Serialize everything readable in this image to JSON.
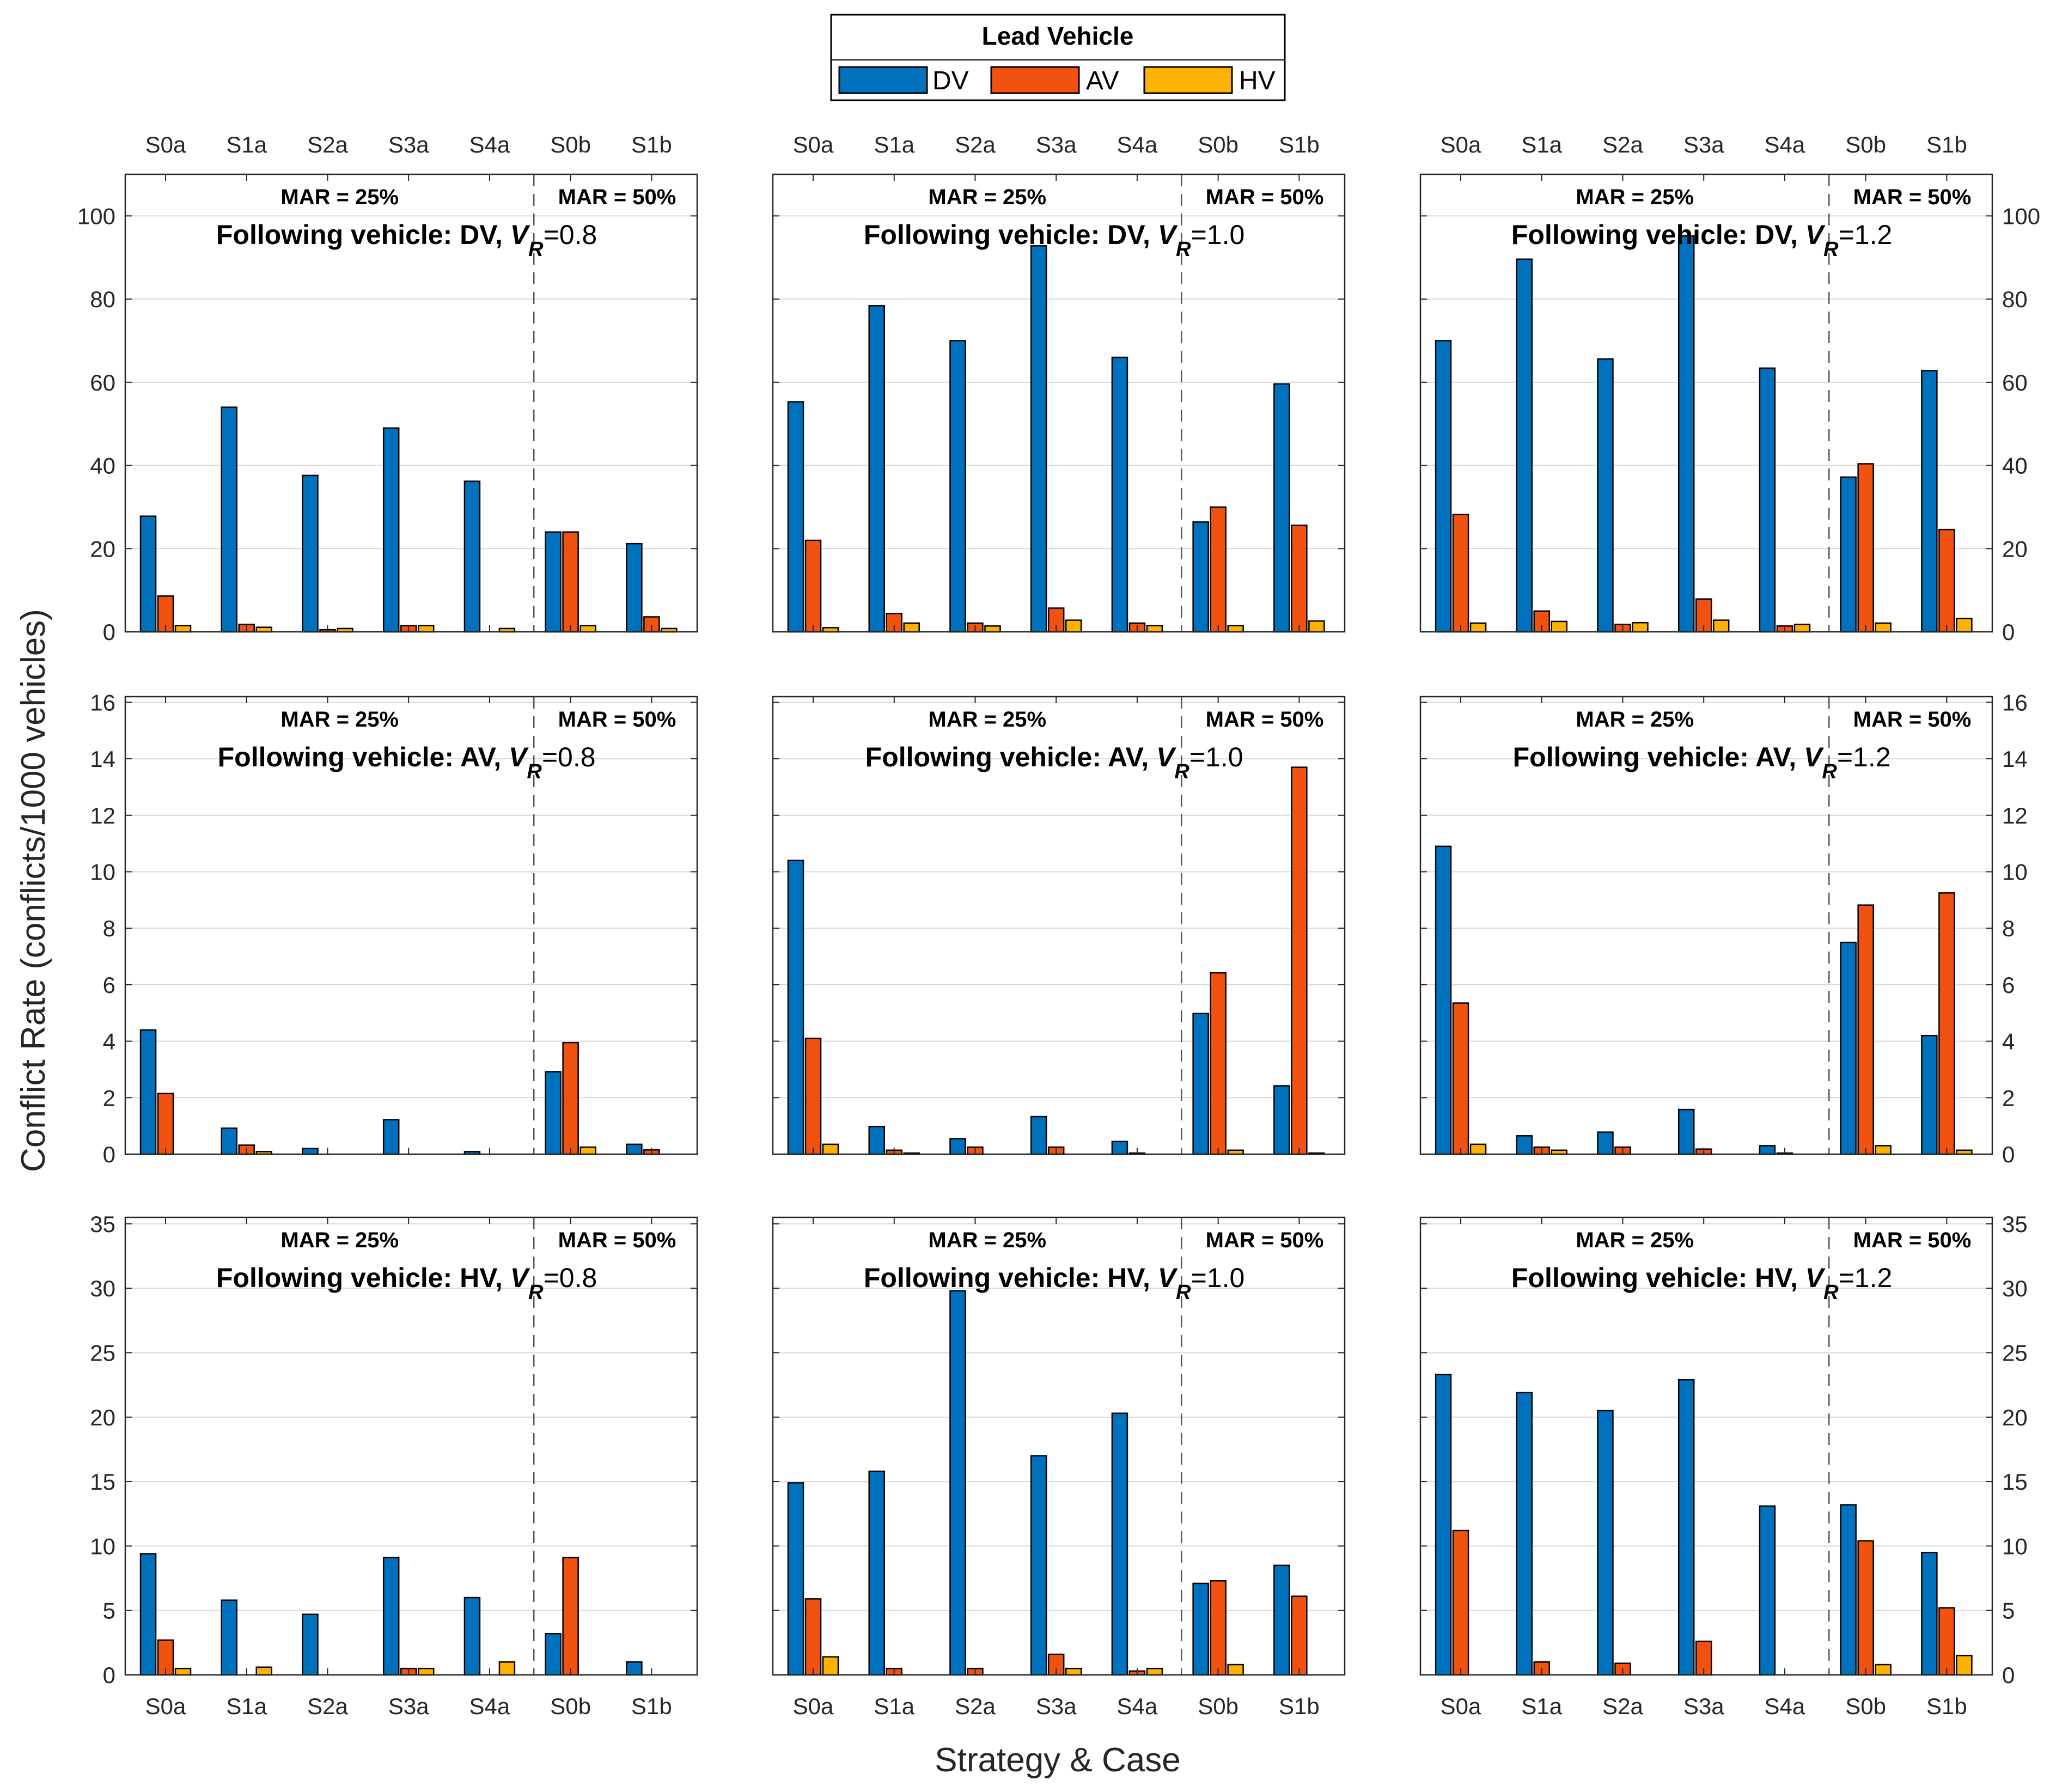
{
  "figure": {
    "legend_title": "Lead Vehicle",
    "legend": [
      {
        "name": "DV",
        "color": "#0072BD"
      },
      {
        "name": "AV",
        "color": "#F2520F"
      },
      {
        "name": "HV",
        "color": "#FFB100"
      }
    ],
    "ylabel": "Conflict Rate (conflicts/1000 vehicles)",
    "xlabel": "Strategy & Case",
    "categories": [
      "S0a",
      "S1a",
      "S2a",
      "S3a",
      "S4a",
      "S0b",
      "S1b"
    ],
    "region_labels": [
      "MAR = 25%",
      "MAR = 50%"
    ]
  },
  "chart_data": [
    {
      "type": "bar",
      "title": "Following vehicle: DV, V_R=0.8",
      "title_prefix": "Following vehicle: DV, ",
      "vr_symbol": "V",
      "vr_sub": "R",
      "vr_value": "=0.8",
      "ylim": [
        0,
        110
      ],
      "yticks": [
        0,
        20,
        40,
        60,
        80,
        100
      ],
      "series": [
        {
          "name": "DV",
          "values": [
            27.8,
            54,
            37.6,
            49,
            36.2,
            24,
            21.2
          ]
        },
        {
          "name": "AV",
          "values": [
            8.6,
            1.8,
            0.5,
            1.5,
            0,
            24,
            3.6
          ]
        },
        {
          "name": "HV",
          "values": [
            1.5,
            1.1,
            0.8,
            1.5,
            0.8,
            1.5,
            0.8
          ]
        }
      ]
    },
    {
      "type": "bar",
      "title": "Following vehicle: DV, V_R=1.0",
      "title_prefix": "Following vehicle: DV, ",
      "vr_symbol": "V",
      "vr_sub": "R",
      "vr_value": "=1.0",
      "ylim": [
        0,
        110
      ],
      "yticks": [
        0,
        20,
        40,
        60,
        80,
        100
      ],
      "series": [
        {
          "name": "DV",
          "values": [
            55.3,
            78.4,
            70,
            92.8,
            66,
            26.4,
            59.6
          ]
        },
        {
          "name": "AV",
          "values": [
            22,
            4.4,
            2.1,
            5.7,
            2.1,
            30,
            25.6
          ]
        },
        {
          "name": "HV",
          "values": [
            1,
            2.1,
            1.4,
            2.8,
            1.5,
            1.5,
            2.6
          ]
        }
      ]
    },
    {
      "type": "bar",
      "title": "Following vehicle: DV, V_R=1.2",
      "title_prefix": "Following vehicle: DV, ",
      "vr_symbol": "V",
      "vr_sub": "R",
      "vr_value": "=1.2",
      "ylim": [
        0,
        110
      ],
      "yticks": [
        0,
        20,
        40,
        60,
        80,
        100
      ],
      "series": [
        {
          "name": "DV",
          "values": [
            70,
            89.6,
            65.6,
            95.2,
            63.4,
            37.2,
            62.8
          ]
        },
        {
          "name": "AV",
          "values": [
            28.2,
            5,
            1.8,
            7.9,
            1.4,
            40.4,
            24.6
          ]
        },
        {
          "name": "HV",
          "values": [
            2.1,
            2.5,
            2.2,
            2.8,
            1.8,
            2.1,
            3.2
          ]
        }
      ]
    },
    {
      "type": "bar",
      "title": "Following vehicle: AV, V_R=0.8",
      "title_prefix": "Following vehicle: AV, ",
      "vr_symbol": "V",
      "vr_sub": "R",
      "vr_value": "=0.8",
      "ylim": [
        0,
        16.2
      ],
      "yticks": [
        0,
        2,
        4,
        6,
        8,
        10,
        12,
        14,
        16
      ],
      "series": [
        {
          "name": "DV",
          "values": [
            4.4,
            0.92,
            0.2,
            1.22,
            0.09,
            2.92,
            0.35
          ]
        },
        {
          "name": "AV",
          "values": [
            2.15,
            0.32,
            0,
            0,
            0,
            3.95,
            0.15
          ]
        },
        {
          "name": "HV",
          "values": [
            0,
            0.09,
            0,
            0,
            0,
            0.25,
            0
          ]
        }
      ]
    },
    {
      "type": "bar",
      "title": "Following vehicle: AV, V_R=1.0",
      "title_prefix": "Following vehicle: AV, ",
      "vr_symbol": "V",
      "vr_sub": "R",
      "vr_value": "=1.0",
      "ylim": [
        0,
        16.2
      ],
      "yticks": [
        0,
        2,
        4,
        6,
        8,
        10,
        12,
        14,
        16
      ],
      "series": [
        {
          "name": "DV",
          "values": [
            10.4,
            0.98,
            0.55,
            1.33,
            0.45,
            4.98,
            2.42
          ]
        },
        {
          "name": "AV",
          "values": [
            4.1,
            0.14,
            0.25,
            0.25,
            0.04,
            6.42,
            13.7
          ]
        },
        {
          "name": "HV",
          "values": [
            0.35,
            0.04,
            0,
            0,
            0,
            0.14,
            0.04
          ]
        }
      ]
    },
    {
      "type": "bar",
      "title": "Following vehicle: AV, V_R=1.2",
      "title_prefix": "Following vehicle: AV, ",
      "vr_symbol": "V",
      "vr_sub": "R",
      "vr_value": "=1.2",
      "ylim": [
        0,
        16.2
      ],
      "yticks": [
        0,
        2,
        4,
        6,
        8,
        10,
        12,
        14,
        16
      ],
      "series": [
        {
          "name": "DV",
          "values": [
            10.9,
            0.65,
            0.78,
            1.58,
            0.3,
            7.5,
            4.2
          ]
        },
        {
          "name": "AV",
          "values": [
            5.35,
            0.25,
            0.25,
            0.18,
            0.04,
            8.82,
            9.25
          ]
        },
        {
          "name": "HV",
          "values": [
            0.35,
            0.14,
            0,
            0,
            0,
            0.3,
            0.14
          ]
        }
      ]
    },
    {
      "type": "bar",
      "title": "Following vehicle: HV, V_R=0.8",
      "title_prefix": "Following vehicle: HV, ",
      "vr_symbol": "V",
      "vr_sub": "R",
      "vr_value": "=0.8",
      "ylim": [
        0,
        35.5
      ],
      "yticks": [
        0,
        5,
        10,
        15,
        20,
        25,
        30,
        35
      ],
      "series": [
        {
          "name": "DV",
          "values": [
            9.4,
            5.8,
            4.7,
            9.1,
            6,
            3.2,
            1
          ]
        },
        {
          "name": "AV",
          "values": [
            2.7,
            0,
            0,
            0.5,
            0,
            9.1,
            0
          ]
        },
        {
          "name": "HV",
          "values": [
            0.5,
            0.6,
            0,
            0.5,
            1,
            0,
            0
          ]
        }
      ]
    },
    {
      "type": "bar",
      "title": "Following vehicle: HV, V_R=1.0",
      "title_prefix": "Following vehicle: HV, ",
      "vr_symbol": "V",
      "vr_sub": "R",
      "vr_value": "=1.0",
      "ylim": [
        0,
        35.5
      ],
      "yticks": [
        0,
        5,
        10,
        15,
        20,
        25,
        30,
        35
      ],
      "series": [
        {
          "name": "DV",
          "values": [
            14.9,
            15.8,
            29.8,
            17,
            20.3,
            7.1,
            8.5
          ]
        },
        {
          "name": "AV",
          "values": [
            5.9,
            0.5,
            0.5,
            1.6,
            0.3,
            7.3,
            6.1
          ]
        },
        {
          "name": "HV",
          "values": [
            1.4,
            0,
            0,
            0.5,
            0.5,
            0.8,
            0
          ]
        }
      ]
    },
    {
      "type": "bar",
      "title": "Following vehicle: HV, V_R=1.2",
      "title_prefix": "Following vehicle: HV, ",
      "vr_symbol": "V",
      "vr_sub": "R",
      "vr_value": "=1.2",
      "ylim": [
        0,
        35.5
      ],
      "yticks": [
        0,
        5,
        10,
        15,
        20,
        25,
        30,
        35
      ],
      "series": [
        {
          "name": "DV",
          "values": [
            23.3,
            21.9,
            20.5,
            22.9,
            13.1,
            13.2,
            9.5
          ]
        },
        {
          "name": "AV",
          "values": [
            11.2,
            1,
            0.9,
            2.6,
            0,
            10.4,
            5.2
          ]
        },
        {
          "name": "HV",
          "values": [
            0,
            0,
            0,
            0,
            0,
            0.8,
            1.5
          ]
        }
      ]
    }
  ]
}
